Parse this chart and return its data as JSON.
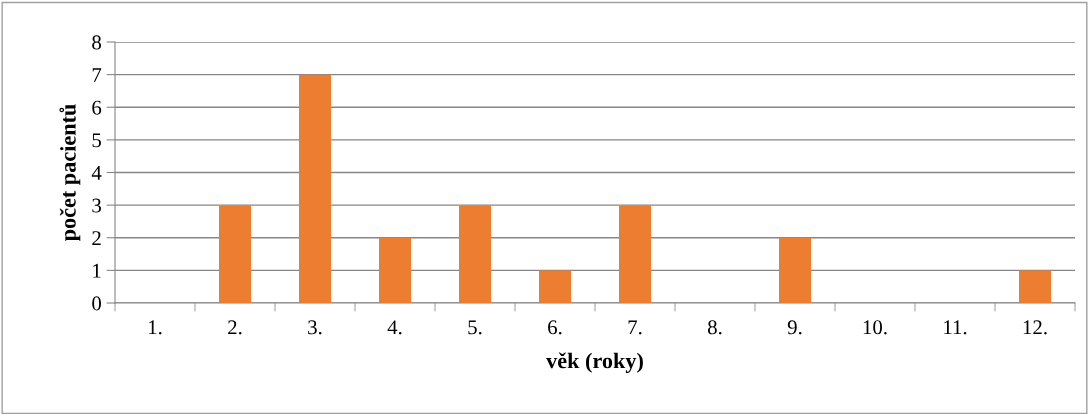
{
  "chart_data": {
    "type": "bar",
    "xlabel": "věk (roky)",
    "ylabel": "počet pacientů",
    "categories": [
      "1.",
      "2.",
      "3.",
      "4.",
      "5.",
      "6.",
      "7.",
      "8.",
      "9.",
      "10.",
      "11.",
      "12."
    ],
    "values": [
      0,
      3,
      7,
      2,
      3,
      1,
      3,
      0,
      2,
      0,
      0,
      1
    ],
    "color": "#ed7d31",
    "ylim": [
      0,
      8
    ],
    "yticks": [
      0,
      1,
      2,
      3,
      4,
      5,
      6,
      7,
      8
    ],
    "grid": "y",
    "legend": false
  }
}
